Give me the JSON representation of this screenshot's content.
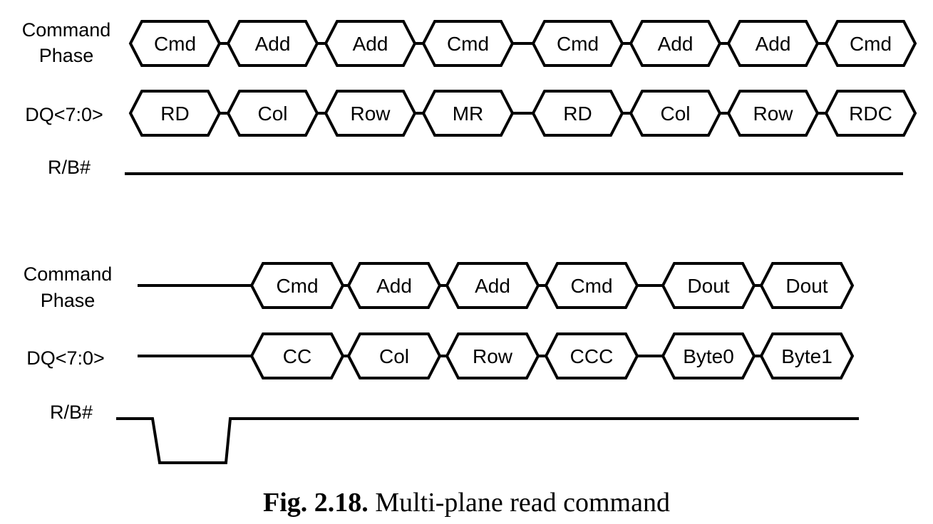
{
  "diagram_a": {
    "row1": {
      "label_lines": [
        "Command",
        "Phase"
      ],
      "boxes": [
        "Cmd",
        "Add",
        "Add",
        "Cmd",
        "Cmd",
        "Add",
        "Add",
        "Cmd"
      ]
    },
    "row2": {
      "label": "DQ<7:0>",
      "boxes": [
        "RD",
        "Col",
        "Row",
        "MR",
        "RD",
        "Col",
        "Row",
        "RDC"
      ]
    },
    "row3": {
      "label": "R/B#"
    }
  },
  "diagram_b": {
    "row1": {
      "label_lines": [
        "Command",
        "Phase"
      ],
      "boxes": [
        "Cmd",
        "Add",
        "Add",
        "Cmd",
        "Dout",
        "Dout"
      ]
    },
    "row2": {
      "label": "DQ<7:0>",
      "boxes": [
        "CC",
        "Col",
        "Row",
        "CCC",
        "Byte0",
        "Byte1"
      ]
    },
    "row3": {
      "label": "R/B#"
    }
  },
  "caption": {
    "number": "Fig. 2.18.",
    "text": "Multi-plane read command"
  }
}
